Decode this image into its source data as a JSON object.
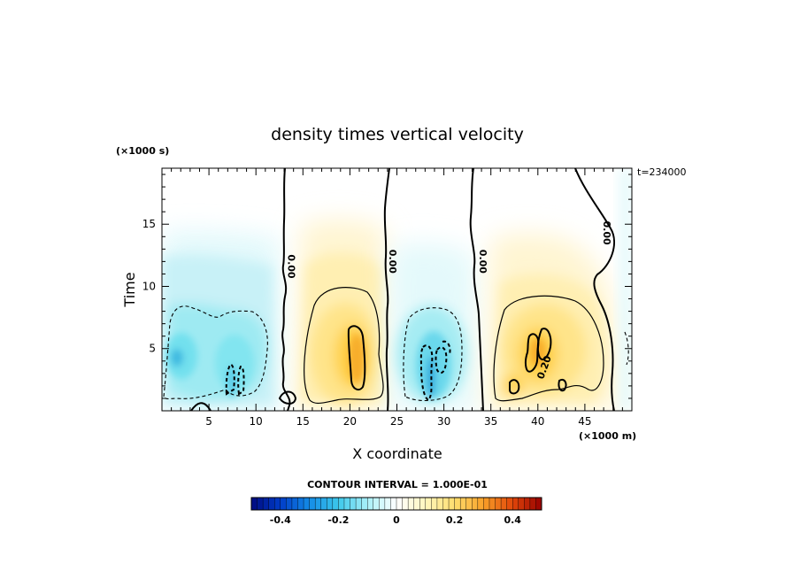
{
  "chart_data": {
    "type": "heatmap",
    "title": "density times vertical velocity",
    "xlabel": "X coordinate",
    "ylabel": "Time",
    "x_unit": "(×1000 m)",
    "y_unit": "(×1000 s)",
    "timestamp": "t=234000",
    "xlim": [
      0,
      50
    ],
    "ylim": [
      0,
      19.5
    ],
    "x_ticks": [
      "5",
      "10",
      "15",
      "20",
      "25",
      "30",
      "35",
      "40",
      "45"
    ],
    "y_ticks": [
      "5",
      "10",
      "15"
    ],
    "contour_interval": "CONTOUR INTERVAL = 1.000E-01",
    "colorbar": {
      "range": [
        -0.5,
        0.5
      ],
      "tick_labels": [
        "-0.4",
        "-0.2",
        "0",
        "0.2",
        "0.4"
      ],
      "tick_values": [
        -0.4,
        -0.2,
        0,
        0.2,
        0.4
      ]
    },
    "contour_labels": [
      {
        "text": "0.00",
        "x": 13.4,
        "y": 11.6
      },
      {
        "text": "0.00",
        "x": 24.2,
        "y": 12.0
      },
      {
        "text": "0.00",
        "x": 33.8,
        "y": 12.0
      },
      {
        "text": "0.00",
        "x": 47.0,
        "y": 14.3
      },
      {
        "text": "0.20",
        "x": 41.0,
        "y": 3.4
      }
    ],
    "features": [
      {
        "x": 1.5,
        "y": 4.6,
        "value": -0.2
      },
      {
        "x": 7.8,
        "y": 2.6,
        "value": -0.25
      },
      {
        "x": 20.1,
        "y": 4.8,
        "value": 0.3
      },
      {
        "x": 28.7,
        "y": 3.0,
        "value": -0.3
      },
      {
        "x": 39.8,
        "y": 4.6,
        "value": 0.3
      },
      {
        "x": 37.2,
        "y": 2.0,
        "value": 0.22
      }
    ]
  },
  "colors": {
    "negative_strong": "#000a7f",
    "negative_light": "#bff3f8",
    "zero": "#ffffff",
    "positive_light": "#fff7c8",
    "positive_mid": "#f7a424",
    "positive_strong": "#a00000"
  }
}
